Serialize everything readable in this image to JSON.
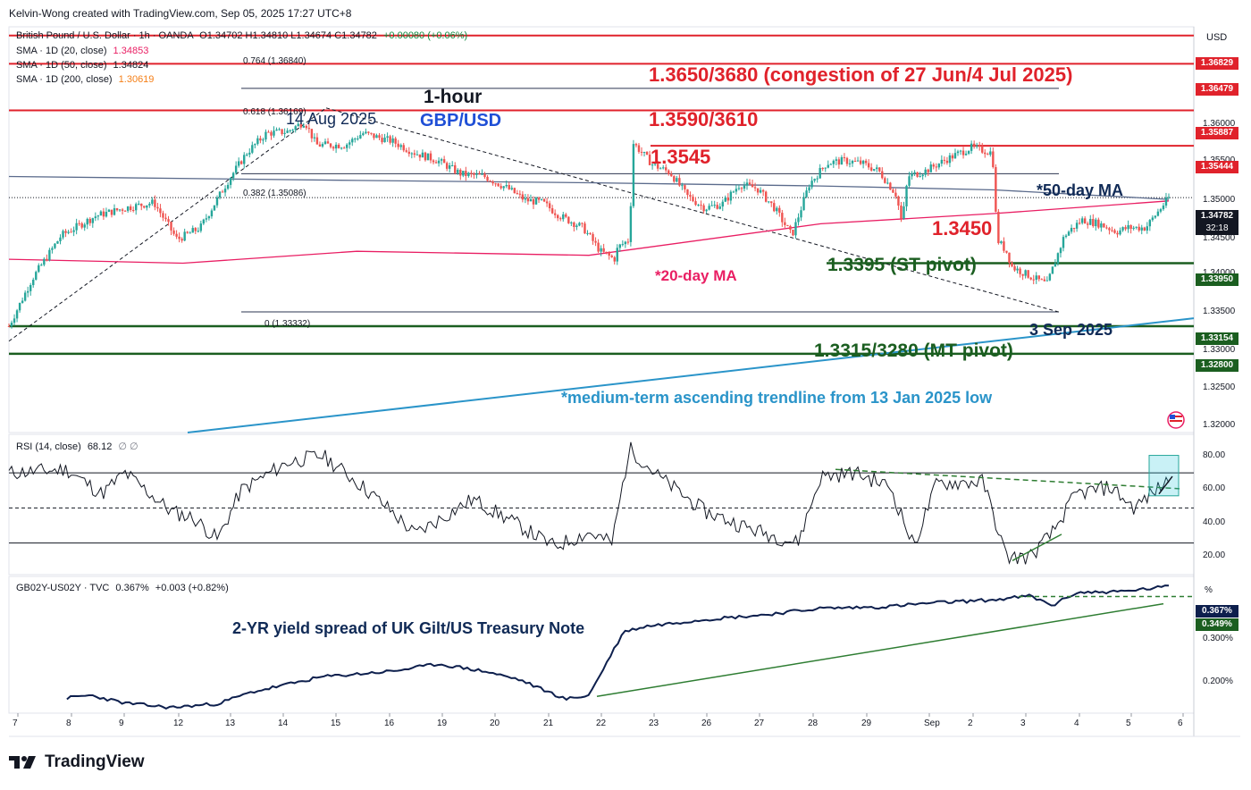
{
  "header": {
    "credit": "Kelvin-Wong created with TradingView.com, Sep 05, 2025 17:27 UTC+8"
  },
  "legend": {
    "symbol": "British Pound / U.S. Dollar · 1h · OANDA",
    "ohlc": "O1.34702  H1.34810  L1.34674  C1.34782",
    "change": "+0.00080 (+0.06%)",
    "sma20_label": "SMA · 1D (20, close)",
    "sma20_value": "1.34853",
    "sma50_label": "SMA · 1D (50, close)",
    "sma50_value": "1.34824",
    "sma200_label": "SMA · 1D (200, close)",
    "sma200_value": "1.30619"
  },
  "currency": "USD",
  "annotations": {
    "congestion": "1.3650/3680 (congestion of 27 Jun/4 Jul 2025)",
    "timeframe": "1-hour",
    "pair": "GBP/USD",
    "zone_3590": "1.3590/3610",
    "aug14": "14 Aug 2025",
    "level_3545": "1.3545",
    "ma50": "*50-day MA",
    "level_3450": "1.3450",
    "st_pivot": "1.3395 (ST pivot)",
    "ma20": "*20-day MA",
    "sep3": "3 Sep 2025",
    "mt_pivot": "1.3315/3280 (MT pivot)",
    "trendline": "*medium-term ascending trendline from 13 Jan 2025 low"
  },
  "fib_labels": [
    "0.764 (1.36840)",
    "0.618 (1.36169)",
    "0.382 (1.35086)",
    "0 (1.33332)"
  ],
  "price_axis": {
    "ticks": [
      "1.36000",
      "1.35500",
      "1.35000",
      "1.34500",
      "1.34000",
      "1.33500",
      "1.33000",
      "1.32500",
      "1.32000"
    ],
    "badges": [
      "1.36829",
      "1.36479",
      "1.35887",
      "1.35444",
      "1.34782",
      "32:18",
      "1.33950",
      "1.33154",
      "1.32800"
    ]
  },
  "rsi": {
    "label": "RSI (14, close)",
    "value": "68.12",
    "extra": "∅  ∅",
    "ticks": [
      "80.00",
      "60.00",
      "40.00",
      "20.00"
    ]
  },
  "spread": {
    "label": "GB02Y-US02Y · TVC",
    "value": "0.367%",
    "change": "+0.003 (+0.82%)",
    "title": "2-YR yield spread of UK Gilt/US Treasury Note",
    "unit": "%",
    "ticks": [
      "0.300%",
      "0.200%"
    ],
    "badges": [
      "0.367%",
      "0.349%"
    ]
  },
  "x_axis": [
    "7",
    "8",
    "9",
    "12",
    "13",
    "14",
    "15",
    "16",
    "19",
    "20",
    "21",
    "22",
    "23",
    "26",
    "27",
    "28",
    "29",
    "Sep",
    "2",
    "3",
    "4",
    "5",
    "6"
  ],
  "logo": "TradingView",
  "colors": {
    "up": "#26a69a",
    "down": "#ef5350",
    "red_level": "#e0222b",
    "green_level": "#1b5e20",
    "ma20": "#e91e63",
    "ma50": "#5b6b8c",
    "trend": "#2a94c9",
    "spread": "#0d1f4d"
  },
  "chart_data": {
    "type": "candlestick",
    "title": "GBP/USD 1-hour",
    "price_range": [
      1.318,
      1.3695
    ],
    "key_levels": [
      1.3684,
      1.3648,
      1.3589,
      1.3544,
      1.3395,
      1.3315,
      1.328
    ],
    "fibonacci": [
      {
        "ratio": 0.764,
        "price": 1.3684
      },
      {
        "ratio": 0.618,
        "price": 1.36169
      },
      {
        "ratio": 0.382,
        "price": 1.35086
      },
      {
        "ratio": 0,
        "price": 1.33332
      }
    ],
    "price_path": [
      [
        0,
        1.3315
      ],
      [
        0.02,
        1.3375
      ],
      [
        0.045,
        1.343
      ],
      [
        0.075,
        1.3455
      ],
      [
        0.1,
        1.3465
      ],
      [
        0.125,
        1.3472
      ],
      [
        0.145,
        1.3425
      ],
      [
        0.165,
        1.344
      ],
      [
        0.19,
        1.3502
      ],
      [
        0.205,
        1.3535
      ],
      [
        0.222,
        1.356
      ],
      [
        0.24,
        1.3562
      ],
      [
        0.255,
        1.3575
      ],
      [
        0.265,
        1.3545
      ],
      [
        0.29,
        1.3545
      ],
      [
        0.305,
        1.356
      ],
      [
        0.33,
        1.355
      ],
      [
        0.35,
        1.3535
      ],
      [
        0.37,
        1.3525
      ],
      [
        0.39,
        1.3508
      ],
      [
        0.41,
        1.3505
      ],
      [
        0.43,
        1.349
      ],
      [
        0.445,
        1.3475
      ],
      [
        0.46,
        1.3472
      ],
      [
        0.475,
        1.3455
      ],
      [
        0.495,
        1.344
      ],
      [
        0.51,
        1.341
      ],
      [
        0.522,
        1.34
      ],
      [
        0.525,
        1.3415
      ],
      [
        0.535,
        1.3425
      ],
      [
        0.538,
        1.3548
      ],
      [
        0.555,
        1.352
      ],
      [
        0.57,
        1.351
      ],
      [
        0.585,
        1.348
      ],
      [
        0.6,
        1.3465
      ],
      [
        0.615,
        1.347
      ],
      [
        0.63,
        1.3495
      ],
      [
        0.645,
        1.349
      ],
      [
        0.66,
        1.3465
      ],
      [
        0.675,
        1.343
      ],
      [
        0.69,
        1.3495
      ],
      [
        0.705,
        1.3522
      ],
      [
        0.72,
        1.3525
      ],
      [
        0.735,
        1.3522
      ],
      [
        0.75,
        1.3512
      ],
      [
        0.765,
        1.3482
      ],
      [
        0.77,
        1.3445
      ],
      [
        0.775,
        1.3505
      ],
      [
        0.79,
        1.3512
      ],
      [
        0.81,
        1.3528
      ],
      [
        0.83,
        1.3542
      ],
      [
        0.848,
        1.3535
      ],
      [
        0.852,
        1.3425
      ],
      [
        0.86,
        1.341
      ],
      [
        0.865,
        1.339
      ],
      [
        0.885,
        1.3375
      ],
      [
        0.895,
        1.3368
      ],
      [
        0.91,
        1.343
      ],
      [
        0.925,
        1.345
      ],
      [
        0.94,
        1.3445
      ],
      [
        0.955,
        1.3435
      ],
      [
        0.965,
        1.344
      ],
      [
        0.98,
        1.344
      ],
      [
        1.0,
        1.3478
      ]
    ],
    "sma20_path": [
      [
        0,
        1.34
      ],
      [
        0.15,
        1.3395
      ],
      [
        0.3,
        1.341
      ],
      [
        0.5,
        1.3405
      ],
      [
        0.7,
        1.3445
      ],
      [
        0.85,
        1.3458
      ],
      [
        1.0,
        1.3474
      ]
    ],
    "sma50_path": [
      [
        0,
        1.3505
      ],
      [
        0.3,
        1.35
      ],
      [
        0.5,
        1.3497
      ],
      [
        0.7,
        1.3493
      ],
      [
        0.85,
        1.3488
      ],
      [
        1.0,
        1.3476
      ]
    ],
    "rsi_path": [
      [
        0,
        70
      ],
      [
        0.05,
        72
      ],
      [
        0.08,
        58
      ],
      [
        0.1,
        70
      ],
      [
        0.14,
        48
      ],
      [
        0.16,
        44
      ],
      [
        0.18,
        32
      ],
      [
        0.2,
        60
      ],
      [
        0.24,
        76
      ],
      [
        0.27,
        80
      ],
      [
        0.3,
        65
      ],
      [
        0.33,
        48
      ],
      [
        0.35,
        35
      ],
      [
        0.4,
        55
      ],
      [
        0.44,
        40
      ],
      [
        0.47,
        28
      ],
      [
        0.5,
        36
      ],
      [
        0.52,
        30
      ],
      [
        0.535,
        84
      ],
      [
        0.56,
        68
      ],
      [
        0.6,
        48
      ],
      [
        0.64,
        38
      ],
      [
        0.68,
        30
      ],
      [
        0.7,
        68
      ],
      [
        0.73,
        70
      ],
      [
        0.76,
        62
      ],
      [
        0.78,
        28
      ],
      [
        0.8,
        64
      ],
      [
        0.84,
        65
      ],
      [
        0.86,
        22
      ],
      [
        0.88,
        22
      ],
      [
        0.9,
        36
      ],
      [
        0.92,
        58
      ],
      [
        0.95,
        62
      ],
      [
        0.97,
        50
      ],
      [
        1.0,
        66
      ]
    ],
    "spread_path": [
      [
        0.05,
        0.167
      ],
      [
        0.07,
        0.172
      ],
      [
        0.1,
        0.158
      ],
      [
        0.14,
        0.15
      ],
      [
        0.18,
        0.157
      ],
      [
        0.21,
        0.178
      ],
      [
        0.27,
        0.205
      ],
      [
        0.3,
        0.21
      ],
      [
        0.33,
        0.215
      ],
      [
        0.37,
        0.228
      ],
      [
        0.41,
        0.215
      ],
      [
        0.44,
        0.2
      ],
      [
        0.48,
        0.165
      ],
      [
        0.5,
        0.172
      ],
      [
        0.53,
        0.286
      ],
      [
        0.55,
        0.296
      ],
      [
        0.6,
        0.308
      ],
      [
        0.65,
        0.316
      ],
      [
        0.7,
        0.328
      ],
      [
        0.75,
        0.33
      ],
      [
        0.8,
        0.338
      ],
      [
        0.85,
        0.343
      ],
      [
        0.88,
        0.35
      ],
      [
        0.9,
        0.333
      ],
      [
        0.92,
        0.356
      ],
      [
        0.96,
        0.358
      ],
      [
        1.0,
        0.367
      ]
    ],
    "spread_range": [
      0.14,
      0.385
    ],
    "rsi_range": [
      12,
      92
    ]
  }
}
